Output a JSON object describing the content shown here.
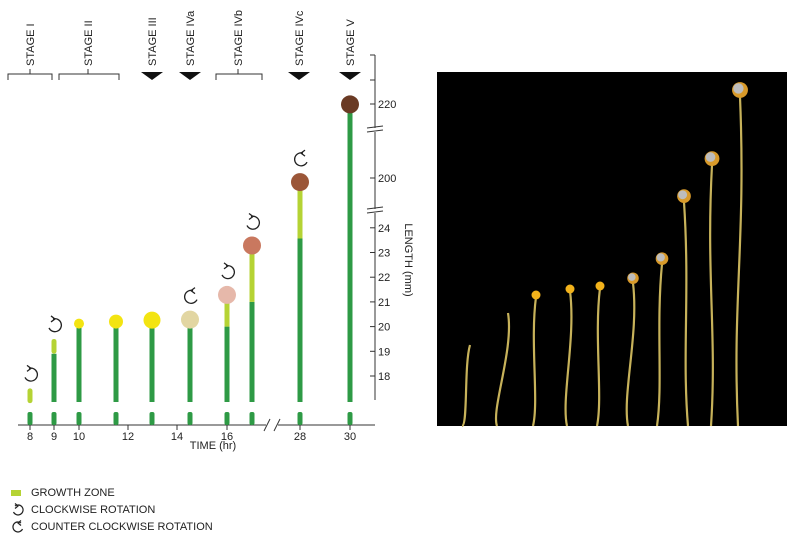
{
  "chart_data": {
    "type": "bar",
    "title": "",
    "xlabel": "TIME (hr)",
    "ylabel": "LENGTH (mm)",
    "x_ticks": [
      "8",
      "9",
      "10",
      "12",
      "14",
      "16",
      "28",
      "30"
    ],
    "y_ticks_lower": [
      "18",
      "19",
      "20",
      "21",
      "22",
      "23",
      "24"
    ],
    "y_ticks_upper": [
      "200",
      "220"
    ],
    "y_axis_break": true,
    "x_axis_break": true,
    "stages": [
      {
        "label": "STAGE  I",
        "kind": "bracket"
      },
      {
        "label": "STAGE  II",
        "kind": "bracket"
      },
      {
        "label": "STAGE  III",
        "kind": "arrow"
      },
      {
        "label": "STAGE  IVa",
        "kind": "arrow"
      },
      {
        "label": "STAGE  IVb",
        "kind": "bracket"
      },
      {
        "label": "STAGE  IVc",
        "kind": "arrow"
      },
      {
        "label": "STAGE  V",
        "kind": "arrow"
      }
    ],
    "sporangiophores": [
      {
        "time": 8,
        "length_mm": 17.5,
        "growth_zone_mm": 0.6,
        "sporangium": "none",
        "rotation": "clockwise"
      },
      {
        "time": 9,
        "length_mm": 19.5,
        "growth_zone_mm": 0.6,
        "sporangium": "none",
        "rotation": "clockwise"
      },
      {
        "time": 10,
        "length_mm": 20.0,
        "growth_zone_mm": 0.0,
        "sporangium": "small",
        "rotation": "none"
      },
      {
        "time": 11.5,
        "length_mm": 20.0,
        "growth_zone_mm": 0.0,
        "sporangium": "medium",
        "rotation": "none"
      },
      {
        "time": 13,
        "length_mm": 20.0,
        "growth_zone_mm": 0.0,
        "sporangium": "large",
        "rotation": "none"
      },
      {
        "time": 14.5,
        "length_mm": 20.0,
        "growth_zone_mm": 0.0,
        "sporangium": "pale",
        "rotation": "counter-clockwise"
      },
      {
        "time": 16,
        "length_mm": 21.0,
        "growth_zone_mm": 1.0,
        "sporangium": "pink",
        "rotation": "clockwise"
      },
      {
        "time": 17,
        "length_mm": 23.0,
        "growth_zone_mm": 2.0,
        "sporangium": "salmon",
        "rotation": "clockwise"
      },
      {
        "time": 28,
        "length_mm": 197,
        "growth_zone_mm": 2.0,
        "sporangium": "brown",
        "rotation": "counter-clockwise"
      },
      {
        "time": 30,
        "length_mm": 218,
        "growth_zone_mm": 0.0,
        "sporangium": "dark",
        "rotation": "none"
      }
    ],
    "colors": {
      "stalk": "#2e9a45",
      "growth_zone": "#b5d334",
      "yellow": "#f3e411",
      "pale": "#e2d6a2",
      "pink": "#e6b8aa",
      "salmon": "#c9785f",
      "brown": "#9b5638",
      "dark": "#6a3a24"
    }
  },
  "legend": {
    "growth_zone": "GROWTH ZONE",
    "clockwise": "CLOCKWISE ROTATION",
    "counter_clockwise": "COUNTER CLOCKWISE ROTATION"
  },
  "photo": {
    "background": "#000000",
    "stalk_color": "#c7b25a",
    "sporangium_colors": [
      "#f2b21b",
      "#bdbdbd"
    ]
  }
}
